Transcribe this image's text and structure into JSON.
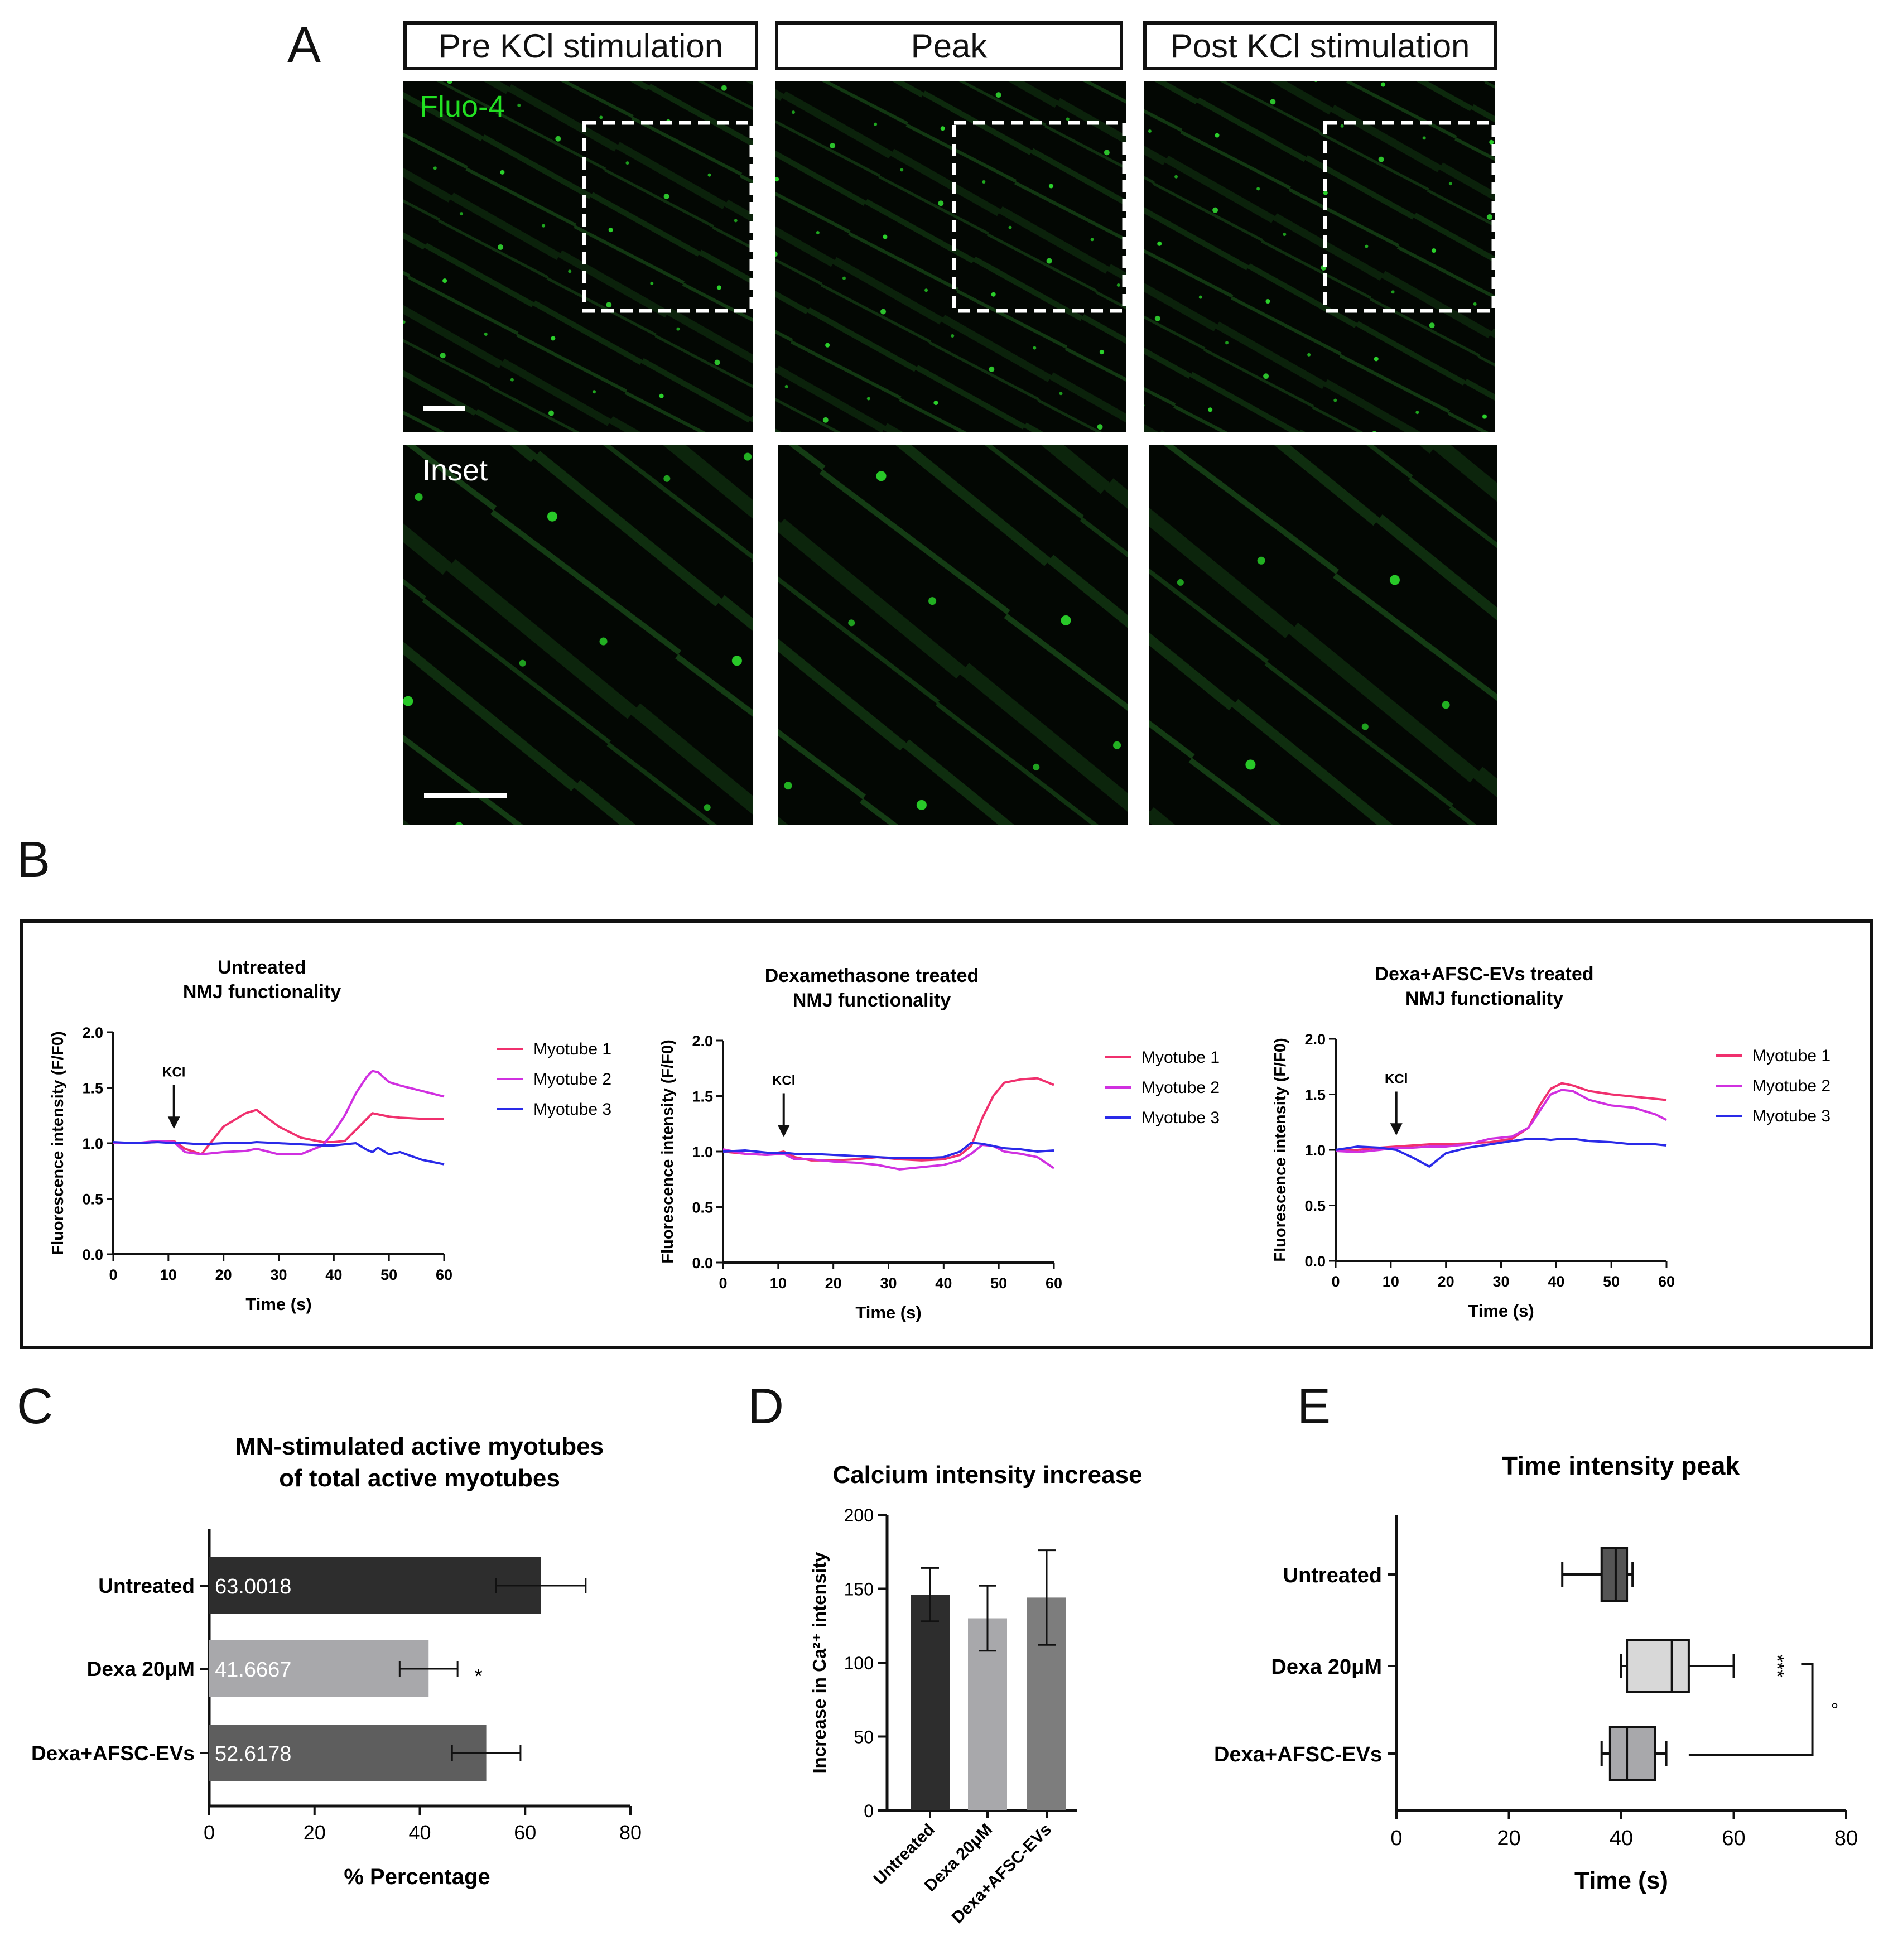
{
  "panel_letters": {
    "a": "A",
    "b": "B",
    "c": "C",
    "d": "D",
    "e": "E"
  },
  "panel_a": {
    "headers": [
      "Pre KCl stimulation",
      "Peak",
      "Post KCl stimulation"
    ],
    "stain_label": "Fluo-4",
    "inset_label": "Inset",
    "colors": {
      "stain": "#22e022",
      "inset_text": "#ffffff",
      "background": "#030703"
    }
  },
  "chart_data": [
    {
      "id": "B1",
      "type": "line",
      "title": "Untreated\nNMJ functionality",
      "xlabel": "Time (s)",
      "ylabel": "Fluorescence intensity (F/F0)",
      "xlim": [
        0,
        60
      ],
      "ylim": [
        0,
        2.0
      ],
      "xticks": [
        0,
        10,
        20,
        30,
        40,
        50,
        60
      ],
      "yticks": [
        0.0,
        0.5,
        1.0,
        1.5,
        2.0
      ],
      "annotation": {
        "text": "KCl",
        "x": 11
      },
      "x": [
        0,
        4,
        8,
        11,
        13,
        16,
        20,
        24,
        26,
        30,
        34,
        38,
        40,
        42,
        44,
        46,
        47,
        48,
        50,
        52,
        56,
        60
      ],
      "series": [
        {
          "name": "Myotube 1",
          "color": "#f0306e",
          "values": [
            1.0,
            1.0,
            1.01,
            1.02,
            0.95,
            0.9,
            1.15,
            1.27,
            1.3,
            1.15,
            1.05,
            1.01,
            1.01,
            1.02,
            1.12,
            1.22,
            1.27,
            1.26,
            1.24,
            1.23,
            1.22,
            1.22
          ]
        },
        {
          "name": "Myotube 2",
          "color": "#d030e0",
          "values": [
            1.0,
            1.0,
            1.02,
            1.01,
            0.92,
            0.9,
            0.92,
            0.93,
            0.95,
            0.9,
            0.9,
            0.98,
            1.1,
            1.25,
            1.45,
            1.6,
            1.65,
            1.64,
            1.55,
            1.52,
            1.47,
            1.42
          ]
        },
        {
          "name": "Myotube 3",
          "color": "#2a2ae8",
          "values": [
            1.01,
            1.0,
            1.01,
            1.0,
            1.0,
            0.99,
            1.0,
            1.0,
            1.01,
            1.0,
            0.99,
            0.98,
            0.98,
            0.99,
            1.0,
            0.94,
            0.92,
            0.96,
            0.9,
            0.92,
            0.85,
            0.81
          ]
        }
      ]
    },
    {
      "id": "B2",
      "type": "line",
      "title": "Dexamethasone treated\nNMJ functionality",
      "xlabel": "Time (s)",
      "ylabel": "Fluorescence intensity (F/F0)",
      "xlim": [
        0,
        60
      ],
      "ylim": [
        0,
        2.0
      ],
      "xticks": [
        0,
        10,
        20,
        30,
        40,
        50,
        60
      ],
      "yticks": [
        0.0,
        0.5,
        1.0,
        1.5,
        2.0
      ],
      "annotation": {
        "text": "KCl",
        "x": 11
      },
      "x": [
        0,
        4,
        8,
        11,
        13,
        16,
        20,
        24,
        28,
        32,
        36,
        40,
        43,
        45,
        47,
        49,
        51,
        54,
        57,
        60
      ],
      "series": [
        {
          "name": "Myotube 1",
          "color": "#f0306e",
          "values": [
            1.0,
            0.98,
            0.97,
            1.0,
            0.95,
            0.92,
            0.92,
            0.93,
            0.95,
            0.93,
            0.92,
            0.93,
            0.97,
            1.05,
            1.3,
            1.5,
            1.62,
            1.65,
            1.66,
            1.6
          ]
        },
        {
          "name": "Myotube 2",
          "color": "#d030e0",
          "values": [
            1.02,
            0.98,
            0.97,
            0.98,
            0.93,
            0.93,
            0.91,
            0.9,
            0.88,
            0.84,
            0.86,
            0.88,
            0.92,
            0.98,
            1.06,
            1.05,
            1.0,
            0.98,
            0.95,
            0.85
          ]
        },
        {
          "name": "Myotube 3",
          "color": "#2a2ae8",
          "values": [
            1.0,
            1.01,
            0.99,
            0.99,
            0.98,
            0.98,
            0.97,
            0.96,
            0.95,
            0.94,
            0.94,
            0.95,
            1.0,
            1.08,
            1.07,
            1.05,
            1.03,
            1.02,
            1.0,
            1.01
          ]
        }
      ]
    },
    {
      "id": "B3",
      "type": "line",
      "title": "Dexa+AFSC-EVs treated\nNMJ functionality",
      "xlabel": "Time (s)",
      "ylabel": "Fluorescence intensity (F/F0)",
      "xlim": [
        0,
        60
      ],
      "ylim": [
        0,
        2.0
      ],
      "xticks": [
        0,
        10,
        20,
        30,
        40,
        50,
        60
      ],
      "yticks": [
        0.0,
        0.5,
        1.0,
        1.5,
        2.0
      ],
      "annotation": {
        "text": "KCl",
        "x": 11
      },
      "x": [
        0,
        4,
        8,
        11,
        14,
        17,
        20,
        24,
        28,
        32,
        35,
        37,
        39,
        41,
        43,
        46,
        50,
        54,
        58,
        60
      ],
      "series": [
        {
          "name": "Myotube 1",
          "color": "#f0306e",
          "values": [
            1.0,
            1.0,
            1.02,
            1.03,
            1.04,
            1.05,
            1.05,
            1.06,
            1.07,
            1.1,
            1.2,
            1.4,
            1.55,
            1.6,
            1.58,
            1.53,
            1.5,
            1.48,
            1.46,
            1.45
          ]
        },
        {
          "name": "Myotube 2",
          "color": "#d030e0",
          "values": [
            0.99,
            0.98,
            1.0,
            1.02,
            1.02,
            1.03,
            1.03,
            1.05,
            1.1,
            1.12,
            1.2,
            1.35,
            1.5,
            1.54,
            1.53,
            1.45,
            1.4,
            1.38,
            1.32,
            1.27
          ]
        },
        {
          "name": "Myotube 3",
          "color": "#2a2ae8",
          "values": [
            1.0,
            1.03,
            1.02,
            1.0,
            0.93,
            0.85,
            0.97,
            1.02,
            1.05,
            1.08,
            1.1,
            1.1,
            1.09,
            1.1,
            1.1,
            1.08,
            1.07,
            1.05,
            1.05,
            1.04
          ]
        }
      ]
    },
    {
      "id": "C",
      "type": "bar",
      "orientation": "horizontal",
      "title": "MN-stimulated active myotubes\nof total active myotubes",
      "xlabel": "% Percentage",
      "xlim": [
        0,
        80
      ],
      "xticks": [
        0,
        20,
        40,
        60,
        80
      ],
      "categories": [
        "Untreated",
        "Dexa 20μM",
        "Dexa+AFSC-EVs"
      ],
      "values": [
        63.0018,
        41.6667,
        52.6178
      ],
      "value_labels": [
        "63.0018",
        "41.6667",
        "52.6178"
      ],
      "errors": [
        8.5,
        5.5,
        6.5
      ],
      "colors": [
        "#2d2d2d",
        "#a8a8ab",
        "#5e5e5e"
      ],
      "significance": [
        {
          "category": "Dexa 20μM",
          "text": "*"
        }
      ]
    },
    {
      "id": "D",
      "type": "bar",
      "title": "Calcium intensity increase",
      "ylabel": "Increase in Ca²⁺ intensity",
      "ylim": [
        0,
        200
      ],
      "yticks": [
        0,
        50,
        100,
        150,
        200
      ],
      "categories": [
        "Untreated",
        "Dexa 20μM",
        "Dexa+AFSC-EVs"
      ],
      "values": [
        146,
        130,
        144
      ],
      "errors": [
        18,
        22,
        32
      ],
      "colors": [
        "#2d2d2d",
        "#a8a8ab",
        "#7d7d7d"
      ]
    },
    {
      "id": "E",
      "type": "box",
      "orientation": "horizontal",
      "title": "Time intensity peak",
      "xlabel": "Time (s)",
      "xlim": [
        0,
        80
      ],
      "xticks": [
        0,
        20,
        40,
        60,
        80
      ],
      "categories": [
        "Untreated",
        "Dexa 20μM",
        "Dexa+AFSC-EVs"
      ],
      "boxes": [
        {
          "min": 29.5,
          "q1": 36.5,
          "median": 39,
          "q3": 41,
          "max": 42
        },
        {
          "min": 40,
          "q1": 41,
          "median": 49,
          "q3": 52,
          "max": 60
        },
        {
          "min": 36.5,
          "q1": 38,
          "median": 41,
          "q3": 46,
          "max": 48
        }
      ],
      "colors": [
        "#555555",
        "#d8d8d8",
        "#a8a8ab"
      ],
      "significance": [
        {
          "category": "Dexa 20μM",
          "text": "***"
        },
        {
          "bracket": "Dexa 20μM vs Dexa+AFSC-EVs",
          "text": "°"
        }
      ]
    }
  ]
}
